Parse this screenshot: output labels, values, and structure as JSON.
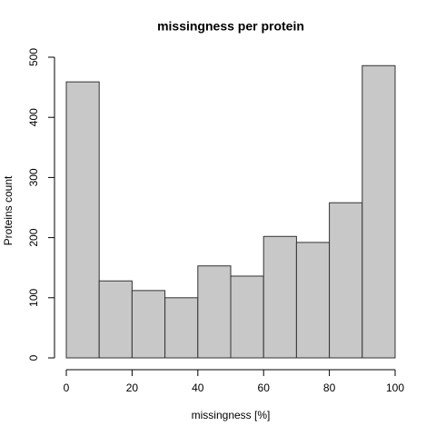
{
  "chart_data": {
    "type": "histogram",
    "title": "missingness per protein",
    "xlabel": "missingness [%]",
    "ylabel": "Proteins count",
    "bins": [
      0,
      10,
      20,
      30,
      40,
      50,
      60,
      70,
      80,
      90,
      100
    ],
    "values": [
      459,
      128,
      112,
      100,
      153,
      136,
      202,
      192,
      258,
      486
    ],
    "color": "#c8c8c8",
    "xlim": [
      0,
      100
    ],
    "xticks": [
      0,
      20,
      40,
      60,
      80,
      100
    ],
    "ylim": [
      0,
      500
    ],
    "yticks": [
      0,
      100,
      200,
      300,
      400,
      500
    ]
  }
}
